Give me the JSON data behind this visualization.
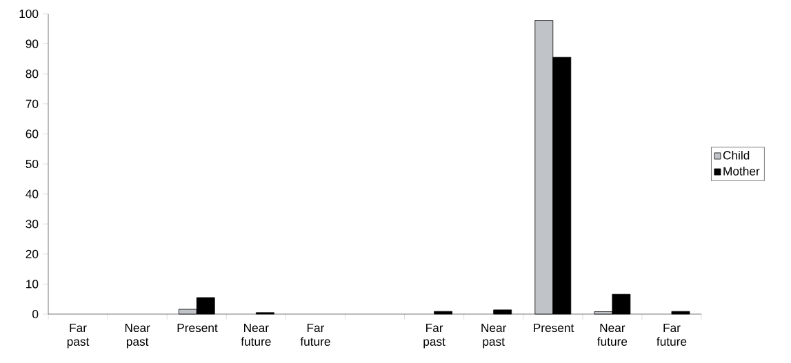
{
  "chart_data": {
    "type": "bar",
    "categories": [
      "Far past",
      "Near past",
      "Present",
      "Near future",
      "Far future",
      null,
      "Far past",
      "Near past",
      "Present",
      "Near future",
      "Far future"
    ],
    "series": [
      {
        "name": "Child",
        "color": "#c0c4c8",
        "values": [
          null,
          null,
          1.6,
          null,
          null,
          null,
          null,
          null,
          97.8,
          0.8,
          null
        ]
      },
      {
        "name": "Mother",
        "color": "#000000",
        "values": [
          null,
          null,
          5.5,
          0.5,
          null,
          null,
          0.9,
          1.4,
          85.5,
          6.6,
          0.9
        ]
      }
    ],
    "ylim": [
      0,
      100
    ],
    "yticks": [
      0,
      10,
      20,
      30,
      40,
      50,
      60,
      70,
      80,
      90,
      100
    ],
    "grid": false,
    "legend": "right"
  }
}
